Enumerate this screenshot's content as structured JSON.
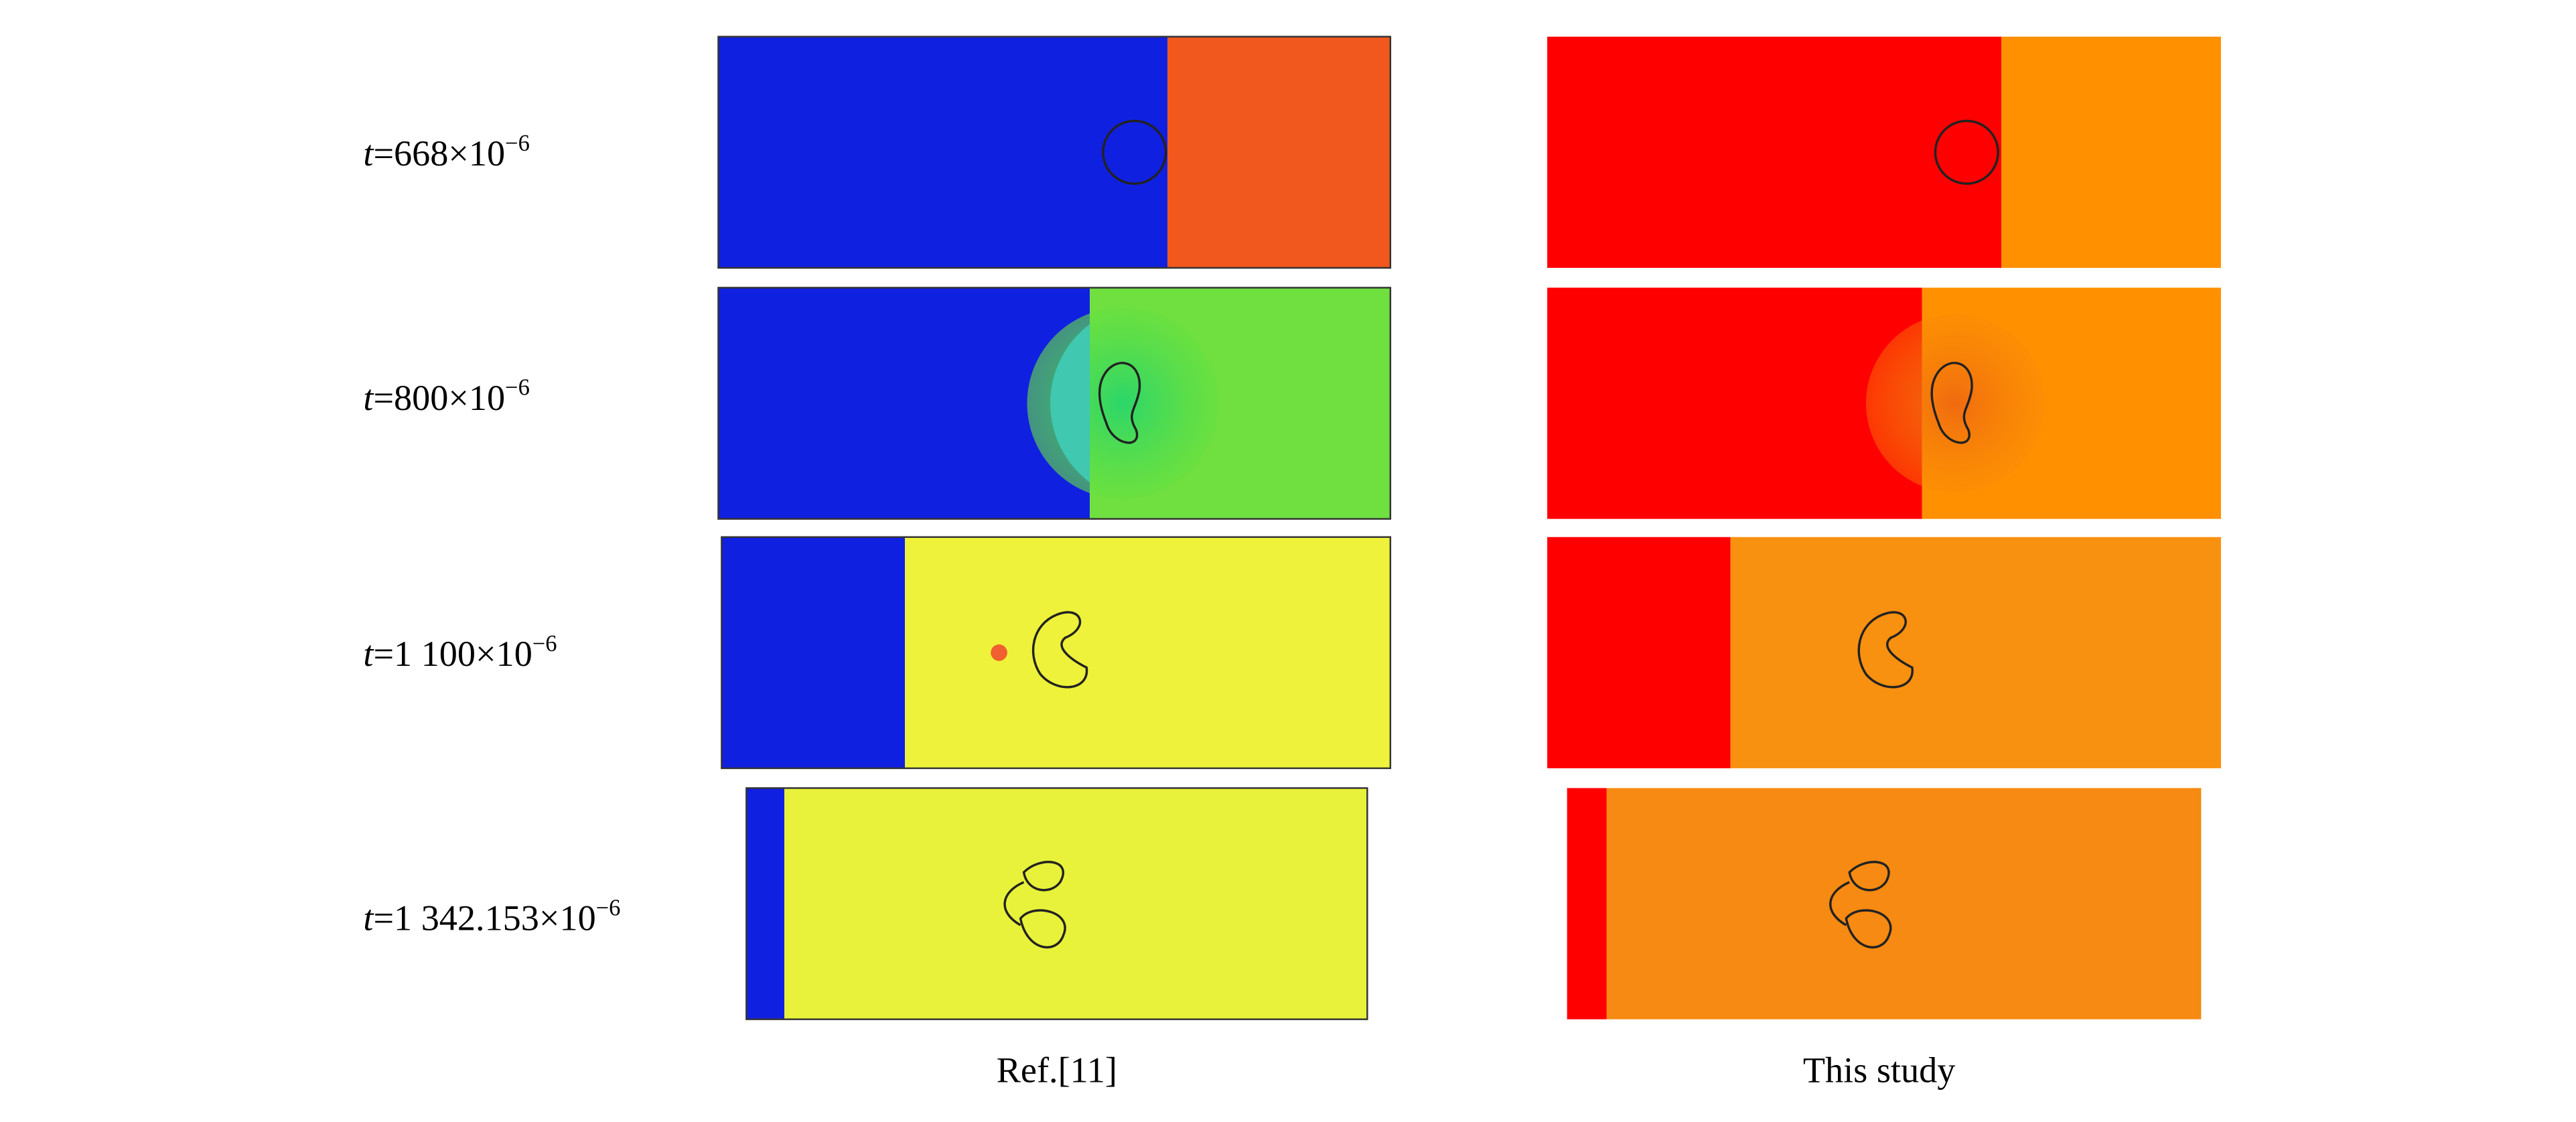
{
  "rows": [
    {
      "variable": "t",
      "value": "=668×10",
      "exponent": "−6"
    },
    {
      "variable": "t",
      "value": "=800×10",
      "exponent": "−6"
    },
    {
      "variable": "t",
      "value": "=1 100×10",
      "exponent": "−6"
    },
    {
      "variable": "t",
      "value": "=1 342.153×10",
      "exponent": "−6"
    }
  ],
  "columns": [
    "Ref.[11]",
    "This study"
  ]
}
